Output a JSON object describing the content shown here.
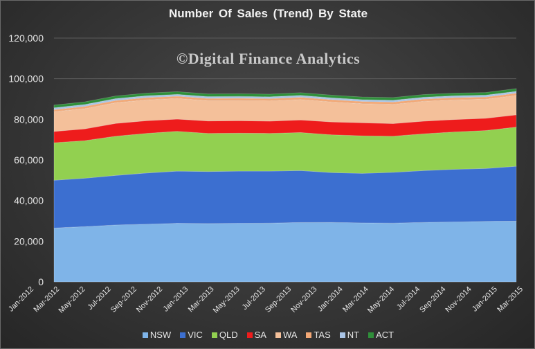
{
  "chart_data": {
    "type": "area",
    "stacked": true,
    "title": "Number Of Sales (Trend) By State",
    "watermark": "©Digital Finance Analytics",
    "xlabel": "",
    "ylabel": "",
    "ylim": [
      0,
      120000
    ],
    "yticks": [
      0,
      20000,
      40000,
      60000,
      80000,
      100000,
      120000
    ],
    "ytick_labels": [
      "0",
      "20,000",
      "40,000",
      "60,000",
      "80,000",
      "100,000",
      "120,000"
    ],
    "xtick_labels": [
      "Jan-2012",
      "Mar-2012",
      "May-2012",
      "Jul-2012",
      "Sep-2012",
      "Nov-2012",
      "Jan-2013",
      "Mar-2013",
      "May-2013",
      "Jul-2013",
      "Sep-2013",
      "Nov-2013",
      "Jan-2014",
      "Mar-2014",
      "May-2014",
      "Jul-2014",
      "Sep-2014",
      "Nov-2014",
      "Jan-2015",
      "Mar-2015"
    ],
    "grid": true,
    "legend_position": "bottom",
    "series": [
      {
        "name": "NSW",
        "color": "#7fb4e8",
        "values": [
          26500,
          27200,
          28000,
          28400,
          28800,
          28700,
          28800,
          28900,
          29200,
          29300,
          29000,
          28900,
          29300,
          29500,
          29800,
          29900
        ]
      },
      {
        "name": "VIC",
        "color": "#3c6fd0",
        "values": [
          23500,
          23800,
          24400,
          25200,
          25700,
          25600,
          25700,
          25600,
          25600,
          24500,
          24400,
          25000,
          25500,
          25900,
          26000,
          27000
        ]
      },
      {
        "name": "QLD",
        "color": "#92d050",
        "values": [
          18500,
          18500,
          19300,
          19500,
          19600,
          18800,
          18700,
          18600,
          18700,
          18600,
          18500,
          17800,
          18100,
          18400,
          18700,
          19300
        ]
      },
      {
        "name": "SA",
        "color": "#ee1c1c",
        "values": [
          5500,
          5800,
          6300,
          6200,
          6000,
          6100,
          6100,
          6000,
          6200,
          6300,
          6400,
          6200,
          6200,
          6100,
          6000,
          6000
        ]
      },
      {
        "name": "WA",
        "color": "#f4c09a",
        "values": [
          9800,
          10000,
          10200,
          10300,
          10200,
          10000,
          10000,
          10000,
          10100,
          9900,
          9400,
          9500,
          9800,
          9700,
          9400,
          9600
        ]
      },
      {
        "name": "TAS",
        "color": "#f2a876",
        "values": [
          1000,
          1100,
          1100,
          1100,
          1100,
          1100,
          1100,
          1100,
          1100,
          1100,
          1100,
          1100,
          1100,
          1100,
          1100,
          1100
        ]
      },
      {
        "name": "NT",
        "color": "#a9c4e6",
        "values": [
          900,
          900,
          900,
          900,
          900,
          900,
          900,
          900,
          900,
          900,
          900,
          900,
          900,
          900,
          900,
          900
        ]
      },
      {
        "name": "ACT",
        "color": "#2f8f3a",
        "values": [
          1300,
          1300,
          1300,
          1300,
          1300,
          1300,
          1300,
          1300,
          1300,
          1300,
          1300,
          1300,
          1300,
          1300,
          1300,
          1300
        ]
      }
    ]
  }
}
